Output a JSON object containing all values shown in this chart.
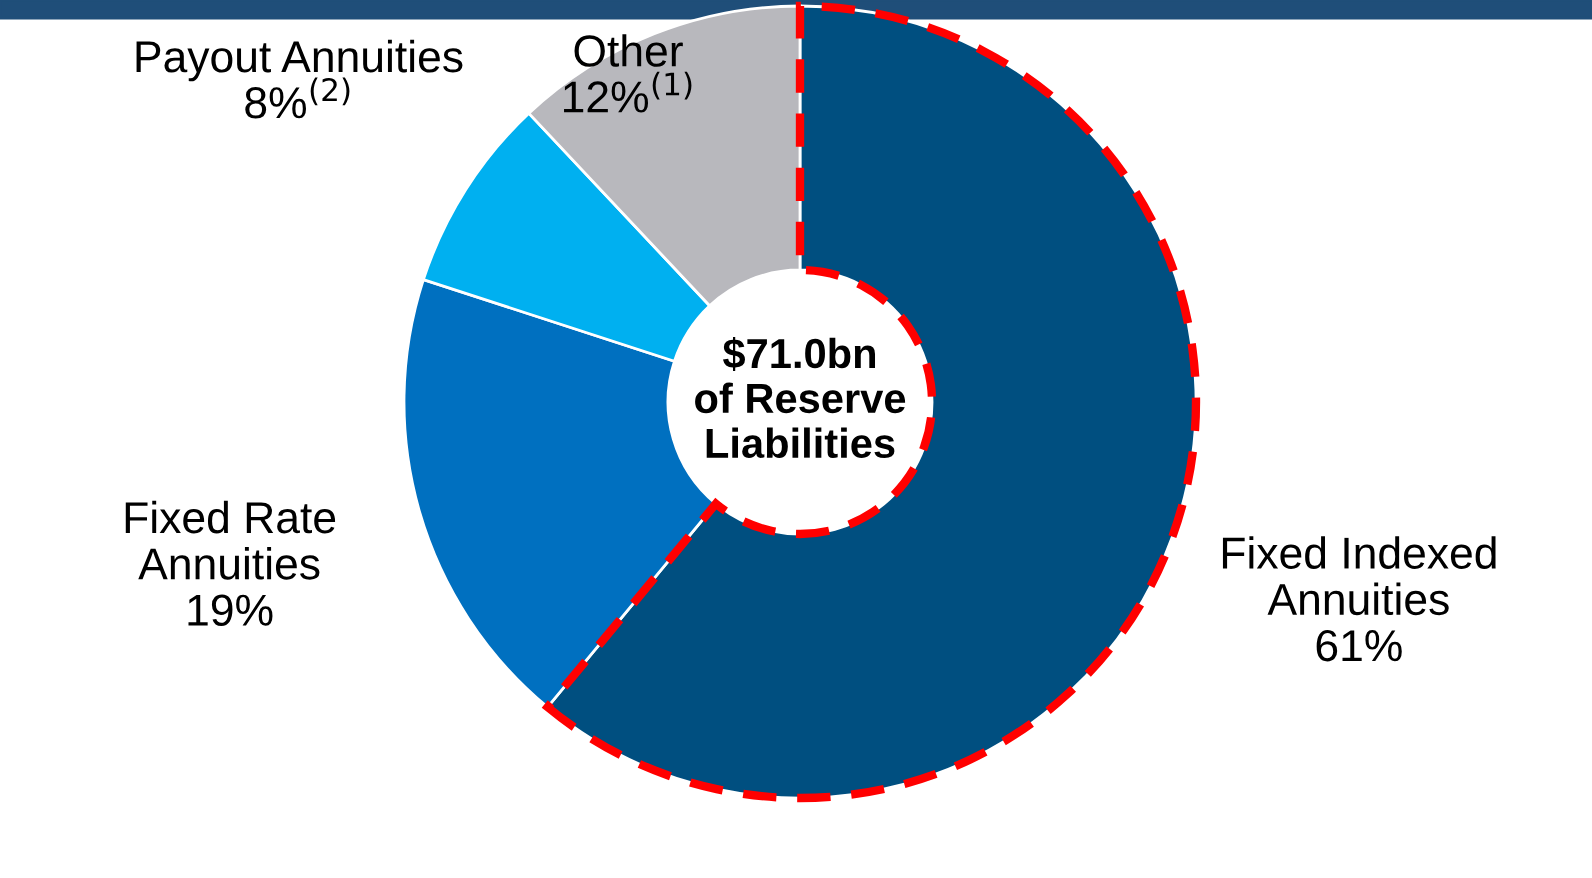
{
  "chart_data": {
    "type": "donut",
    "categories": [
      "Fixed Indexed\nAnnuities",
      "Fixed Rate\nAnnuities",
      "Payout Annuities",
      "Other"
    ],
    "values": [
      61,
      19,
      8,
      12
    ],
    "colors": [
      "#004f80",
      "#0070c0",
      "#00b0f0",
      "#b8b8bd"
    ],
    "value_labels": [
      "61%",
      "19%",
      "8%$^{(2)}$",
      "12%$^{(1)}$"
    ],
    "annotations": [
      "$71.0bn\nof Reserve\nLiabilities"
    ],
    "legend": false
  }
}
